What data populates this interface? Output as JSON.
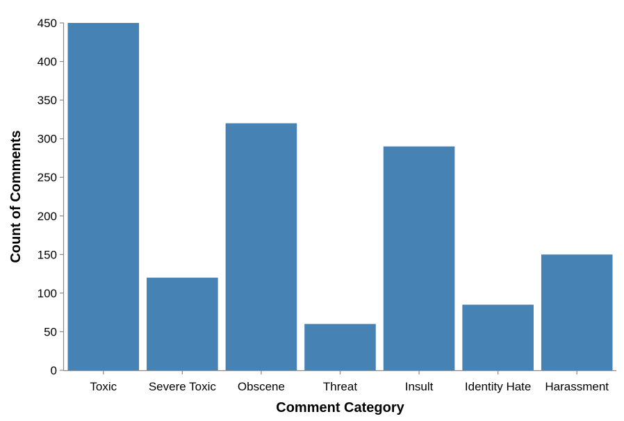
{
  "chart_data": {
    "type": "bar",
    "categories": [
      "Toxic",
      "Severe Toxic",
      "Obscene",
      "Threat",
      "Insult",
      "Identity Hate",
      "Harassment"
    ],
    "values": [
      450,
      120,
      320,
      60,
      290,
      85,
      150
    ],
    "title": "",
    "xlabel": "Comment Category",
    "ylabel": "Count of Comments",
    "ylim": [
      0,
      450
    ],
    "yticks": [
      0,
      50,
      100,
      150,
      200,
      250,
      300,
      350,
      400,
      450
    ],
    "grid": false,
    "legend": "none",
    "bar_color": "#4682b4"
  }
}
